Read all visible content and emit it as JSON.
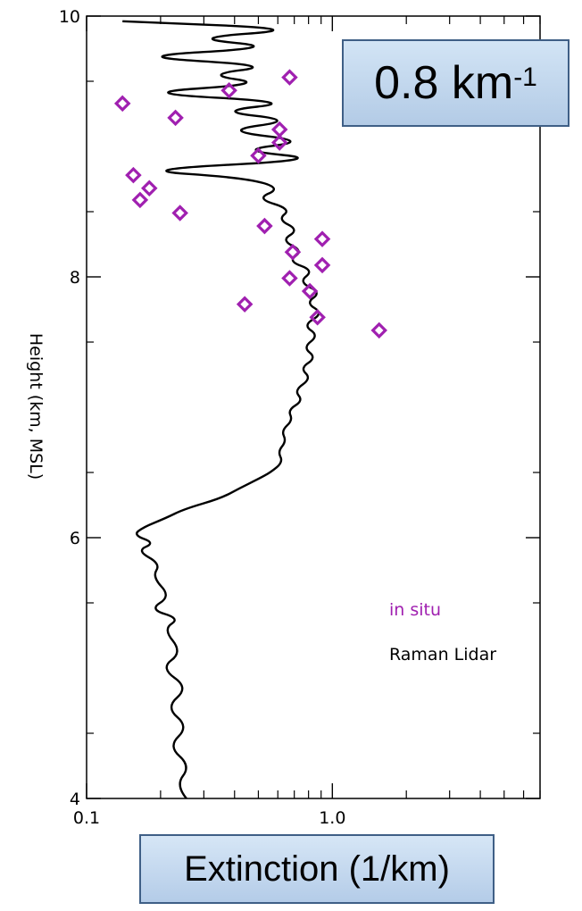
{
  "chart_data": {
    "type": "scatter",
    "xlabel": "Extinction (1/km)",
    "ylabel": "Height (km, MSL)",
    "xscale": "log",
    "xlim": [
      0.1,
      7.0
    ],
    "ylim": [
      4,
      10
    ],
    "xticks": [
      {
        "value": 0.1,
        "label": "0.1"
      },
      {
        "value": 1.0,
        "label": "1.0"
      }
    ],
    "yticks": [
      {
        "value": 4,
        "label": "4"
      },
      {
        "value": 6,
        "label": "6"
      },
      {
        "value": 8,
        "label": "8"
      },
      {
        "value": 10,
        "label": "10"
      }
    ],
    "annotation": {
      "text": "0.8 km",
      "superscript": "-1"
    },
    "legend_placement": "lower-right",
    "series": [
      {
        "name": "in situ",
        "kind": "scatter",
        "marker": "diamond",
        "color": "#a020b0",
        "points": [
          [
            0.14,
            9.33
          ],
          [
            0.38,
            9.43
          ],
          [
            0.67,
            9.53
          ],
          [
            0.23,
            9.22
          ],
          [
            0.61,
            9.13
          ],
          [
            0.61,
            9.03
          ],
          [
            0.5,
            8.93
          ],
          [
            0.155,
            8.78
          ],
          [
            0.18,
            8.68
          ],
          [
            0.165,
            8.59
          ],
          [
            0.24,
            8.49
          ],
          [
            0.53,
            8.39
          ],
          [
            0.91,
            8.29
          ],
          [
            0.69,
            8.19
          ],
          [
            0.91,
            8.09
          ],
          [
            0.67,
            7.99
          ],
          [
            0.81,
            7.89
          ],
          [
            0.44,
            7.79
          ],
          [
            0.87,
            7.69
          ],
          [
            1.55,
            7.59
          ]
        ]
      },
      {
        "name": "Raman Lidar",
        "kind": "line",
        "color": "#000000",
        "points": [
          [
            0.255,
            4.0
          ],
          [
            0.23,
            4.1
          ],
          [
            0.265,
            4.25
          ],
          [
            0.215,
            4.4
          ],
          [
            0.26,
            4.55
          ],
          [
            0.21,
            4.7
          ],
          [
            0.26,
            4.85
          ],
          [
            0.2,
            5.0
          ],
          [
            0.245,
            5.12
          ],
          [
            0.205,
            5.3
          ],
          [
            0.24,
            5.38
          ],
          [
            0.18,
            5.45
          ],
          [
            0.22,
            5.55
          ],
          [
            0.185,
            5.7
          ],
          [
            0.2,
            5.8
          ],
          [
            0.16,
            5.9
          ],
          [
            0.19,
            5.96
          ],
          [
            0.155,
            6.02
          ],
          [
            0.17,
            6.08
          ],
          [
            0.21,
            6.15
          ],
          [
            0.25,
            6.22
          ],
          [
            0.35,
            6.3
          ],
          [
            0.42,
            6.38
          ],
          [
            0.5,
            6.45
          ],
          [
            0.56,
            6.5
          ],
          [
            0.63,
            6.58
          ],
          [
            0.6,
            6.66
          ],
          [
            0.65,
            6.74
          ],
          [
            0.62,
            6.82
          ],
          [
            0.69,
            6.9
          ],
          [
            0.66,
            6.98
          ],
          [
            0.76,
            7.05
          ],
          [
            0.7,
            7.13
          ],
          [
            0.82,
            7.22
          ],
          [
            0.74,
            7.3
          ],
          [
            0.86,
            7.38
          ],
          [
            0.76,
            7.46
          ],
          [
            0.88,
            7.55
          ],
          [
            0.76,
            7.63
          ],
          [
            0.92,
            7.72
          ],
          [
            0.78,
            7.8
          ],
          [
            0.9,
            7.88
          ],
          [
            0.73,
            7.96
          ],
          [
            0.84,
            8.05
          ],
          [
            0.66,
            8.12
          ],
          [
            0.76,
            8.2
          ],
          [
            0.62,
            8.28
          ],
          [
            0.73,
            8.36
          ],
          [
            0.6,
            8.44
          ],
          [
            0.68,
            8.52
          ],
          [
            0.49,
            8.6
          ],
          [
            0.62,
            8.68
          ],
          [
            0.44,
            8.76
          ],
          [
            0.15,
            8.82
          ],
          [
            0.98,
            8.9
          ],
          [
            0.4,
            8.97
          ],
          [
            0.82,
            9.04
          ],
          [
            0.35,
            9.12
          ],
          [
            0.72,
            9.2
          ],
          [
            0.33,
            9.27
          ],
          [
            0.74,
            9.34
          ],
          [
            0.15,
            9.41
          ],
          [
            0.55,
            9.48
          ],
          [
            0.3,
            9.55
          ],
          [
            0.6,
            9.62
          ],
          [
            0.14,
            9.69
          ],
          [
            0.64,
            9.76
          ],
          [
            0.25,
            9.83
          ],
          [
            0.82,
            9.9
          ],
          [
            0.14,
            9.96
          ]
        ]
      }
    ]
  }
}
